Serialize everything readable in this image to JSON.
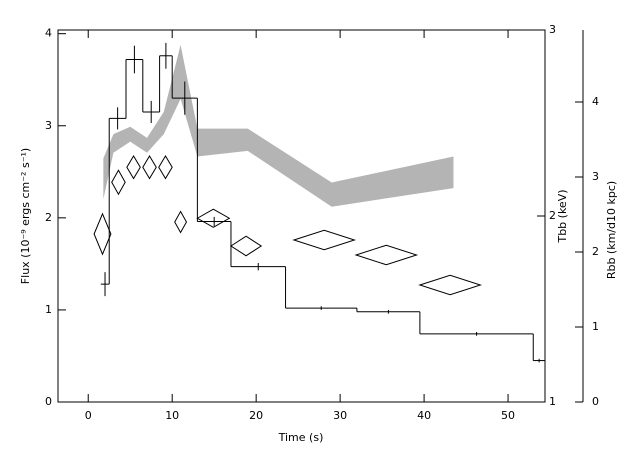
{
  "chart_data": [
    {
      "type": "histogram",
      "xlabel": "Time (s)",
      "ylabel": "Flux (10⁻⁹ ergs cm⁻² s⁻¹)",
      "color": "#000000",
      "bins": [
        1.5,
        2.5,
        4.5,
        6.5,
        8.5,
        10,
        13,
        17,
        23.5,
        32,
        39.5,
        53,
        54.4
      ],
      "values": [
        1.28,
        3.08,
        3.72,
        3.15,
        3.76,
        3.3,
        1.96,
        1.47,
        1.02,
        0.98,
        0.74,
        0.45
      ],
      "errors": [
        0.13,
        0.12,
        0.15,
        0.12,
        0.14,
        0.18,
        0.05,
        0.04,
        0.02,
        0.02,
        0.02,
        0.02
      ],
      "xlim": [
        -3.6,
        54.4
      ],
      "xticks": [
        0,
        10,
        20,
        30,
        40,
        50
      ],
      "ylim": [
        0,
        4.04
      ],
      "yticks": [
        0,
        1,
        2,
        3,
        4
      ]
    },
    {
      "type": "band",
      "ylabel": "Tbb (keV)",
      "color": "#b4b4b4",
      "x": [
        1.8,
        3,
        5,
        7,
        9,
        11,
        13,
        19,
        29,
        43.5
      ],
      "upper": [
        2.31,
        2.44,
        2.48,
        2.42,
        2.56,
        2.92,
        2.47,
        2.47,
        2.18,
        2.32
      ],
      "lower": [
        2.09,
        2.34,
        2.4,
        2.34,
        2.44,
        2.63,
        2.32,
        2.35,
        2.05,
        2.15
      ],
      "xlim": [
        -3.6,
        54.4
      ],
      "ylim": [
        1,
        3
      ],
      "yticks": [
        1,
        2,
        3
      ]
    },
    {
      "type": "diamond",
      "ylabel": "Rbb (km/d10 kpc)",
      "color": "#000000",
      "x": [
        1.7,
        3.6,
        5.4,
        7.3,
        9.2,
        11,
        14.9,
        18.8,
        28.1,
        35.5,
        43.1
      ],
      "xerr": [
        1,
        0.8,
        0.8,
        0.8,
        0.8,
        0.7,
        1.9,
        1.8,
        3.6,
        3.6,
        3.6
      ],
      "values": [
        2.24,
        2.93,
        3.13,
        3.13,
        3.13,
        2.4,
        2.45,
        2.08,
        2.16,
        1.96,
        1.56
      ],
      "yerr": [
        0.27,
        0.16,
        0.15,
        0.15,
        0.15,
        0.14,
        0.12,
        0.13,
        0.13,
        0.13,
        0.13
      ],
      "xlim": [
        -3.6,
        54.4
      ],
      "ylim": [
        0,
        4.96
      ],
      "yticks": [
        0,
        1,
        2,
        3,
        4
      ]
    }
  ]
}
